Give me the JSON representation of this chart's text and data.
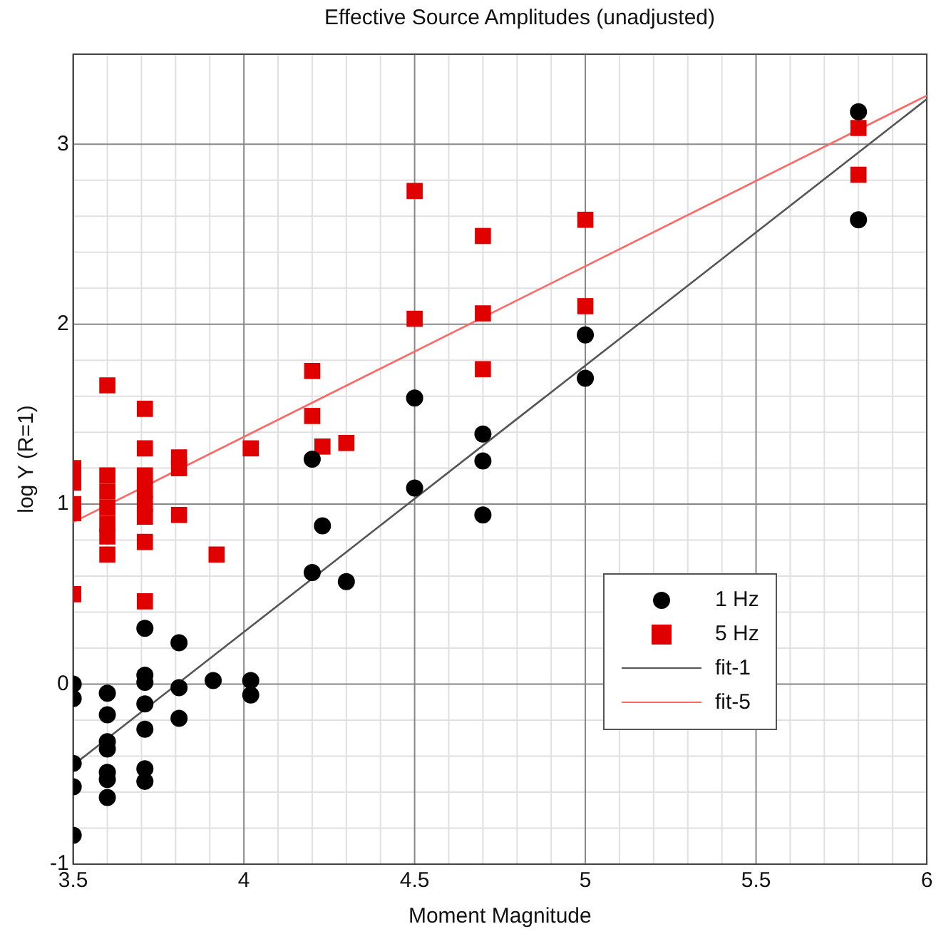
{
  "chart_data": {
    "type": "scatter",
    "title": "Effective Source Amplitudes (unadjusted)",
    "xlabel": "Moment Magnitude",
    "ylabel": "log Y (R=1)",
    "xlim": [
      3.5,
      6
    ],
    "xticks": [
      3.5,
      4,
      4.5,
      5,
      5.5,
      6
    ],
    "ylim": [
      -1,
      3.5
    ],
    "yticks": [
      -1,
      0,
      1,
      2,
      3
    ],
    "grid": true,
    "legend": "right",
    "series": [
      {
        "name": "1 Hz",
        "type": "scatter",
        "marker": "circle",
        "color": "#000000",
        "x": [
          3.5,
          3.5,
          3.5,
          3.5,
          3.5,
          3.6,
          3.6,
          3.6,
          3.6,
          3.6,
          3.6,
          3.6,
          3.71,
          3.71,
          3.71,
          3.71,
          3.71,
          3.71,
          3.71,
          3.81,
          3.81,
          3.81,
          3.91,
          4.02,
          4.02,
          4.2,
          4.2,
          4.23,
          4.3,
          4.5,
          4.5,
          4.7,
          4.7,
          4.7,
          5.0,
          5.0,
          5.8,
          5.8
        ],
        "values": [
          0.0,
          -0.08,
          -0.44,
          -0.57,
          -0.84,
          -0.05,
          -0.17,
          -0.32,
          -0.36,
          -0.49,
          -0.53,
          -0.63,
          0.31,
          0.05,
          0.01,
          -0.11,
          -0.25,
          -0.47,
          -0.54,
          0.23,
          -0.02,
          -0.19,
          0.02,
          0.02,
          -0.06,
          1.25,
          0.62,
          0.88,
          0.57,
          1.59,
          1.09,
          1.39,
          1.24,
          0.94,
          1.94,
          1.7,
          3.18,
          2.58
        ]
      },
      {
        "name": "5 Hz",
        "type": "scatter",
        "marker": "square",
        "color": "#e00000",
        "x": [
          3.5,
          3.5,
          3.5,
          3.5,
          3.5,
          3.6,
          3.6,
          3.6,
          3.6,
          3.6,
          3.6,
          3.6,
          3.71,
          3.71,
          3.71,
          3.71,
          3.71,
          3.71,
          3.71,
          3.71,
          3.81,
          3.81,
          3.81,
          3.92,
          4.02,
          4.2,
          4.2,
          4.23,
          4.3,
          4.5,
          4.5,
          4.7,
          4.7,
          4.7,
          5.0,
          5.0,
          5.8,
          5.8
        ],
        "values": [
          1.2,
          1.12,
          1.0,
          0.95,
          0.5,
          1.66,
          1.16,
          1.07,
          0.98,
          0.89,
          0.82,
          0.72,
          1.53,
          1.31,
          1.16,
          1.08,
          1.0,
          0.93,
          0.79,
          0.46,
          1.26,
          1.2,
          0.94,
          0.72,
          1.31,
          1.74,
          1.49,
          1.32,
          1.34,
          2.74,
          2.03,
          2.49,
          2.06,
          1.75,
          2.58,
          2.1,
          3.09,
          2.83
        ]
      },
      {
        "name": "fit-1",
        "type": "line",
        "marker": "none",
        "line_style": "solid",
        "color": "#555555",
        "x": [
          3.5,
          6
        ],
        "values": [
          -0.45,
          3.25
        ]
      },
      {
        "name": "fit-5",
        "type": "line",
        "marker": "none",
        "line_style": "solid",
        "color": "#ff6666",
        "x": [
          3.5,
          6
        ],
        "values": [
          0.9,
          3.27
        ]
      }
    ]
  }
}
